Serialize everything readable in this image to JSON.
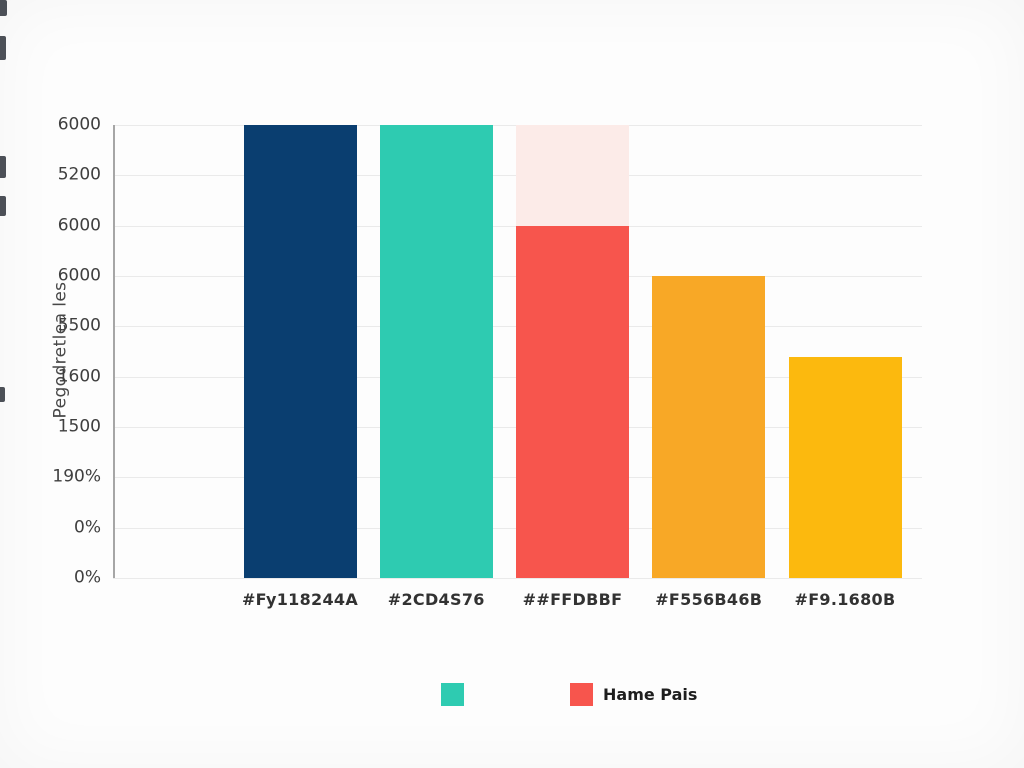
{
  "chart_data": {
    "type": "bar",
    "title": "",
    "ylabel": "Pegodretlea les",
    "xlabel": "",
    "grid": true,
    "ylim": [
      0,
      9
    ],
    "y_tick_labels_top_to_bottom": [
      "6000",
      "5200",
      "6000",
      "6000",
      "5500",
      "1600",
      "1500",
      "190%",
      "0%",
      "0%"
    ],
    "categories": [
      "#Fy118244A",
      "#2CD4S76",
      "##FFDBBF",
      "#F556B46B",
      "#F9.1680B"
    ],
    "bars": [
      {
        "label": "#Fy118244A",
        "value": 9.0,
        "color": "#0a3e70"
      },
      {
        "label": "#2CD4S76",
        "value": 9.0,
        "color": "#2ecbb1"
      },
      {
        "label": "##FFDBBF",
        "value": 7.0,
        "color": "#f7554d",
        "overlay_segment": {
          "value": 2.0,
          "color": "#fcebe8"
        }
      },
      {
        "label": "#F556B46B",
        "value": 6.0,
        "color": "#f8a826"
      },
      {
        "label": "#F9.1680B",
        "value": 4.4,
        "color": "#fcb90e"
      }
    ],
    "legend": {
      "position": "bottom",
      "items": [
        {
          "label": "",
          "color": "#2ecbb1"
        },
        {
          "label": "Hame Pais",
          "color": "#f7554d"
        }
      ]
    },
    "colors": {
      "grid": "#eaeaea",
      "axis_line": "#a6a6a6",
      "tick_text": "#3f3f3f"
    }
  }
}
